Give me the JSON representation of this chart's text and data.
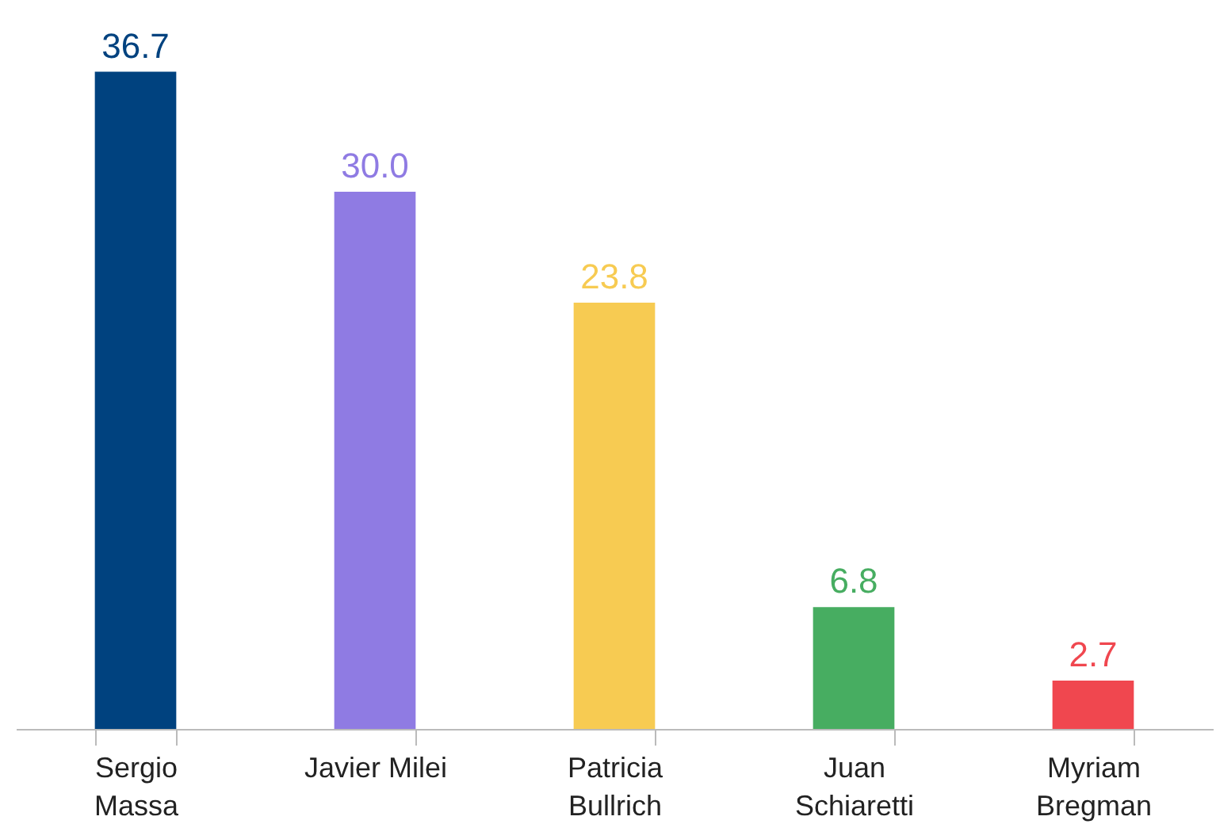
{
  "chart_data": {
    "type": "bar",
    "categories": [
      "Sergio\nMassa",
      "Javier Milei",
      "Patricia\nBullrich",
      "Juan\nSchiaretti",
      "Myriam\nBregman"
    ],
    "values": [
      36.7,
      30.0,
      23.8,
      6.8,
      2.7
    ],
    "colors": [
      "#00427f",
      "#8f7be3",
      "#f7cb52",
      "#47ad61",
      "#f0474f"
    ],
    "value_labels": [
      "36.7",
      "30.0",
      "23.8",
      "6.8",
      "2.7"
    ],
    "grid": false,
    "legend": false
  }
}
